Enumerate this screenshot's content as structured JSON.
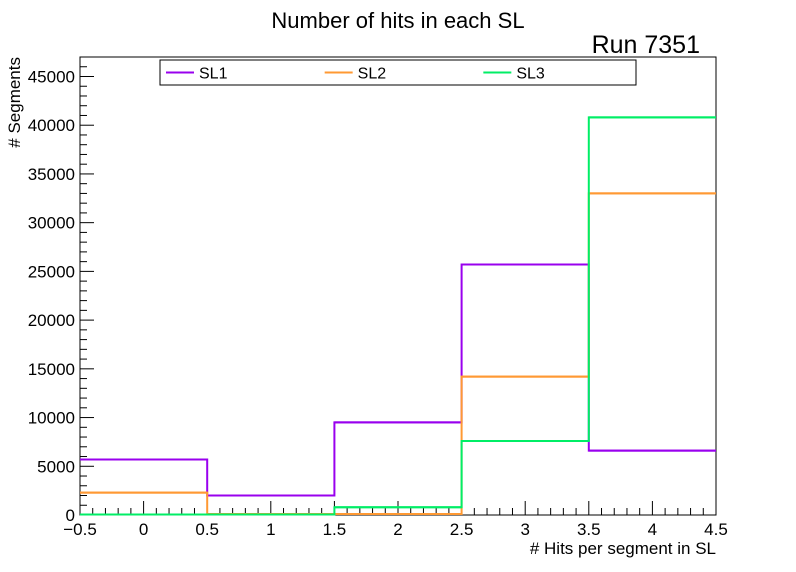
{
  "chart_data": {
    "type": "histogram-step",
    "title": "Number of hits in each SL",
    "annotation": "Run 7351",
    "xlabel": "# Hits per segment in SL",
    "ylabel": "# Segments",
    "xlim": [
      -0.5,
      4.5
    ],
    "ylim": [
      0,
      47000
    ],
    "xticks": [
      -0.5,
      0,
      0.5,
      1,
      1.5,
      2,
      2.5,
      3,
      3.5,
      4,
      4.5
    ],
    "xtick_labels": [
      "−0.5",
      "0",
      "0.5",
      "1",
      "1.5",
      "2",
      "2.5",
      "3",
      "3.5",
      "4",
      "4.5"
    ],
    "yticks": [
      0,
      5000,
      10000,
      15000,
      20000,
      25000,
      30000,
      35000,
      40000,
      45000
    ],
    "ytick_labels": [
      "0",
      "5000",
      "10000",
      "15000",
      "20000",
      "25000",
      "30000",
      "35000",
      "40000",
      "45000"
    ],
    "bin_edges": [
      -0.5,
      0.5,
      1.5,
      2.5,
      3.5,
      4.5
    ],
    "series": [
      {
        "name": "SL1",
        "color": "#9900ee",
        "values": [
          5700,
          2000,
          9500,
          25700,
          6600
        ]
      },
      {
        "name": "SL2",
        "color": "#ff9933",
        "values": [
          2300,
          100,
          100,
          14200,
          33000
        ]
      },
      {
        "name": "SL3",
        "color": "#00ee66",
        "values": [
          50,
          50,
          800,
          7600,
          40800
        ]
      }
    ],
    "legend_placement": "top"
  }
}
